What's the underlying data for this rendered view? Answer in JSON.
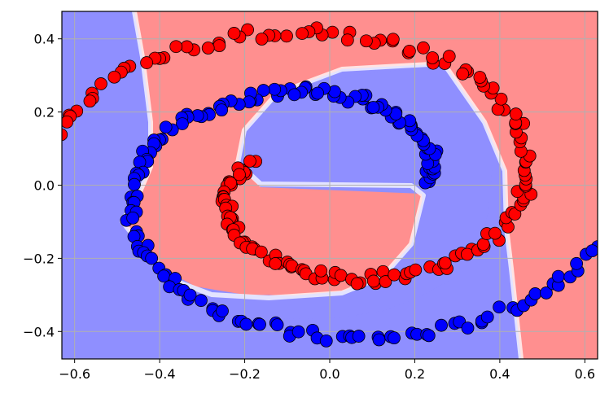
{
  "chart_data": {
    "type": "scatter",
    "title": "",
    "xlabel": "",
    "ylabel": "",
    "xlim": [
      -0.63,
      0.63
    ],
    "ylim": [
      -0.475,
      0.475
    ],
    "xticks": [
      -0.6,
      -0.4,
      -0.2,
      0.0,
      0.2,
      0.4,
      0.6
    ],
    "yticks": [
      -0.4,
      -0.2,
      0.0,
      0.2,
      0.4
    ],
    "xtick_labels": [
      "−0.6",
      "−0.4",
      "−0.2",
      "0.0",
      "0.2",
      "0.4",
      "0.6"
    ],
    "ytick_labels": [
      "−0.4",
      "−0.2",
      "0.0",
      "0.2",
      "0.4"
    ],
    "grid": true,
    "background": "decision regions (blue / red) of a two-class classifier",
    "colors": {
      "blue_point": "#0000ff",
      "red_point": "#ff0000",
      "blue_region": "#8f8fff",
      "red_region": "#ff8f8f",
      "grid": "#b0b0b0"
    },
    "series": [
      {
        "color": "blue",
        "spiral": {
          "t_start": 0.35,
          "t_end": 1.0,
          "r_scale": 0.67,
          "phase": 3.1416,
          "turns": 1.45
        }
      },
      {
        "color": "red",
        "spiral": {
          "t_start": 0.3,
          "t_end": 1.0,
          "r_scale": 0.67,
          "phase": 0.0,
          "turns": 1.45
        }
      }
    ]
  }
}
